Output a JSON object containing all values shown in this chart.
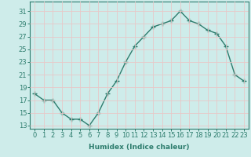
{
  "x": [
    0,
    1,
    2,
    3,
    4,
    5,
    6,
    7,
    8,
    9,
    10,
    11,
    12,
    13,
    14,
    15,
    16,
    17,
    18,
    19,
    20,
    21,
    22,
    23
  ],
  "y": [
    18,
    17,
    17,
    15,
    14,
    14,
    13,
    15,
    18,
    20,
    23,
    25.5,
    27,
    28.5,
    29,
    29.5,
    31,
    29.5,
    29,
    28,
    27.5,
    25.5,
    21,
    20
  ],
  "line_color": "#2e7d6e",
  "marker": "+",
  "marker_size": 4,
  "bg_color": "#ceecea",
  "grid_color": "#e8c8c8",
  "xlabel": "Humidex (Indice chaleur)",
  "xlim": [
    -0.5,
    23.5
  ],
  "ylim": [
    12.5,
    32.5
  ],
  "yticks": [
    13,
    15,
    17,
    19,
    21,
    23,
    25,
    27,
    29,
    31
  ],
  "xticks": [
    0,
    1,
    2,
    3,
    4,
    5,
    6,
    7,
    8,
    9,
    10,
    11,
    12,
    13,
    14,
    15,
    16,
    17,
    18,
    19,
    20,
    21,
    22,
    23
  ],
  "xlabel_fontsize": 6.5,
  "tick_fontsize": 6,
  "line_width": 1.0,
  "marker_color": "#2e7d6e"
}
